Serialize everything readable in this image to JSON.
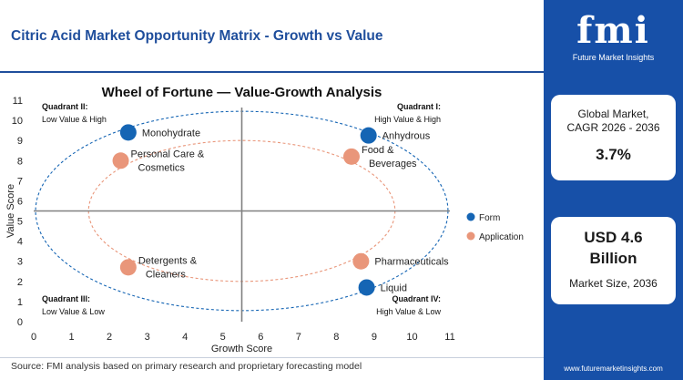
{
  "header": {
    "title": "Citric Acid Market Opportunity Matrix - Growth vs Value"
  },
  "footer": {
    "source": "Source: FMI analysis based on primary research and proprietary forecasting model"
  },
  "sidebar": {
    "logo_text": "fmi",
    "logo_sub": "Future Market Insights",
    "cagr_label_1": "Global Market,",
    "cagr_label_2": "CAGR 2026 - 2036",
    "cagr_value": "3.7%",
    "size_value_1": "USD 4.6",
    "size_value_2": "Billion",
    "size_label": "Market Size, 2036",
    "website": "www.futuremarketinsights.com"
  },
  "colors": {
    "brand_blue": "#1750a8",
    "title_blue": "#1f4e9c",
    "form_blue": "#1565b4",
    "application_salmon": "#e9967a",
    "axis_gray": "#808080"
  },
  "chart_data": {
    "type": "scatter",
    "title": "Wheel of Fortune — Value-Growth Analysis",
    "xlabel": "Growth Score",
    "ylabel": "Value Score",
    "xlim": [
      0,
      11
    ],
    "ylim": [
      0,
      11
    ],
    "x_ticks": [
      0,
      1,
      2,
      3,
      4,
      5,
      6,
      7,
      8,
      9,
      10,
      11
    ],
    "y_ticks": [
      0,
      1,
      2,
      3,
      4,
      5,
      6,
      7,
      8,
      9,
      10,
      11
    ],
    "quadrant_dividers": {
      "x": 5.5,
      "y": 5.5
    },
    "grid": false,
    "legend_position": "right",
    "quadrants": [
      {
        "name": "Quadrant II:",
        "desc": "Low Value & High",
        "position": "top-left"
      },
      {
        "name": "Quadrant I:",
        "desc": "High Value & High",
        "position": "top-right"
      },
      {
        "name": "Quadrant III:",
        "desc": "Low Value & Low",
        "position": "bottom-left"
      },
      {
        "name": "Quadrant IV:",
        "desc": "High Value & Low",
        "position": "bottom-right"
      }
    ],
    "rings": [
      {
        "series": "Form",
        "cx": 5.5,
        "cy": 5.5,
        "rx": 5.45,
        "ry": 4.95
      },
      {
        "series": "Application",
        "cx": 5.5,
        "cy": 5.5,
        "rx": 4.05,
        "ry": 3.5
      }
    ],
    "series": [
      {
        "name": "Form",
        "color": "#1565b4",
        "points": [
          {
            "label": "Monohydrate",
            "x": 2.5,
            "y": 9.4,
            "label_side": "right"
          },
          {
            "label": "Anhydrous",
            "x": 8.85,
            "y": 9.25,
            "label_side": "right"
          },
          {
            "label": "Liquid",
            "x": 8.8,
            "y": 1.7,
            "label_side": "right"
          }
        ]
      },
      {
        "name": "Application",
        "color": "#e9967a",
        "points": [
          {
            "label": "Personal Care & Cosmetics",
            "x": 2.3,
            "y": 8.0,
            "label_side": "right"
          },
          {
            "label": "Food & Beverages",
            "x": 8.4,
            "y": 8.2,
            "label_side": "right"
          },
          {
            "label": "Detergents & Cleaners",
            "x": 2.5,
            "y": 2.7,
            "label_side": "right"
          },
          {
            "label": "Pharmaceuticals",
            "x": 8.65,
            "y": 3.0,
            "label_side": "right"
          }
        ]
      }
    ]
  }
}
